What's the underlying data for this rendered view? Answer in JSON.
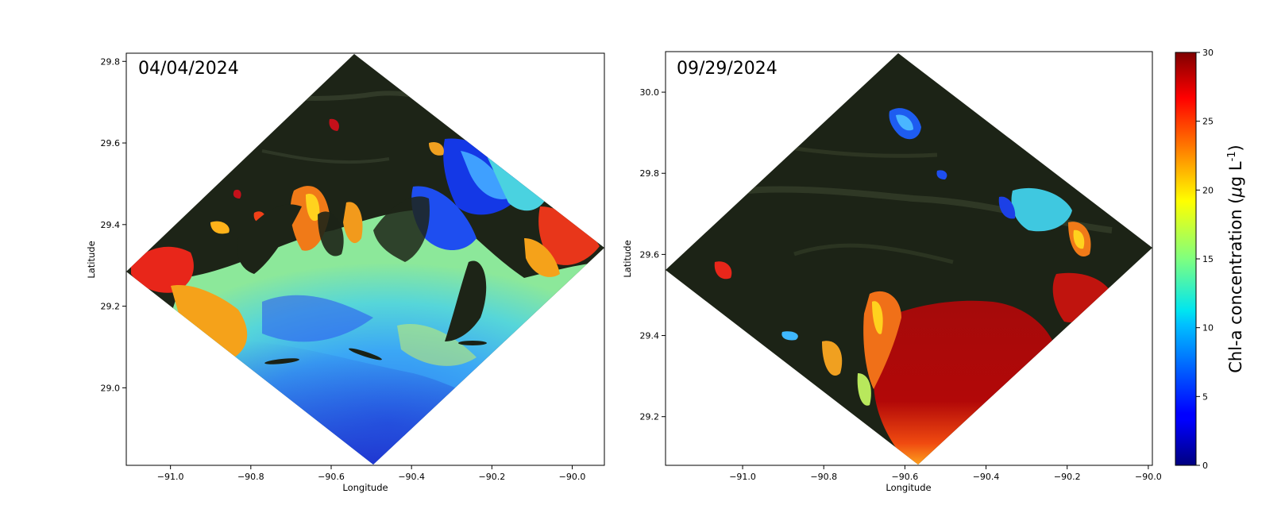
{
  "chart_data": [
    {
      "type": "heatmap",
      "title": "04/04/2024",
      "xlabel": "Longitude",
      "ylabel": "Latitude",
      "xlim": [
        -91.11,
        -89.92
      ],
      "ylim": [
        28.81,
        29.82
      ],
      "xticks": [
        -91.0,
        -90.8,
        -90.6,
        -90.4,
        -90.2,
        -90.0
      ],
      "xtick_labels": [
        "−91.0",
        "−90.8",
        "−90.6",
        "−90.4",
        "−90.2",
        "−90.0"
      ],
      "yticks": [
        29.0,
        29.2,
        29.4,
        29.6,
        29.8
      ],
      "ytick_labels": [
        "29.0",
        "29.2",
        "29.4",
        "29.6",
        "29.8"
      ],
      "scene_corners": [
        [
          -90.53,
          29.82
        ],
        [
          -89.92,
          29.335
        ],
        [
          -90.49,
          28.81
        ],
        [
          -91.11,
          29.285
        ]
      ],
      "dominant_pattern": "moderate Chl-a (5-15) offshore; high (20-30) along western coast and eastern bays"
    },
    {
      "type": "heatmap",
      "title": "09/29/2024",
      "xlabel": "Longitude",
      "ylabel": "Latitude",
      "xlim": [
        -91.19,
        -89.99
      ],
      "ylim": [
        29.08,
        30.1
      ],
      "xticks": [
        -91.0,
        -90.8,
        -90.6,
        -90.4,
        -90.2,
        -90.0
      ],
      "xtick_labels": [
        "−91.0",
        "−90.8",
        "−90.6",
        "−90.4",
        "−90.2",
        "−90.0"
      ],
      "yticks": [
        29.2,
        29.4,
        29.6,
        29.8,
        30.0
      ],
      "ytick_labels": [
        "29.2",
        "29.4",
        "29.6",
        "29.8",
        "30.0"
      ],
      "scene_corners": [
        [
          -90.61,
          30.1
        ],
        [
          -89.99,
          29.62
        ],
        [
          -90.57,
          29.08
        ],
        [
          -91.19,
          29.56
        ]
      ],
      "dominant_pattern": "high Chl-a (25-30) over southern coastal waters; moderate (5-15) in inland lakes"
    }
  ],
  "colorbar": {
    "label_prefix": "Chl-a concentration (",
    "label_mu": "μ",
    "label_g": "g L",
    "label_sup": "-1",
    "label_suffix": ")",
    "min": 0,
    "max": 30,
    "colormap": "jet",
    "ticks": [
      0,
      5,
      10,
      15,
      20,
      25,
      30
    ],
    "tick_labels": [
      "0",
      "5",
      "10",
      "15",
      "20",
      "25",
      "30"
    ]
  }
}
